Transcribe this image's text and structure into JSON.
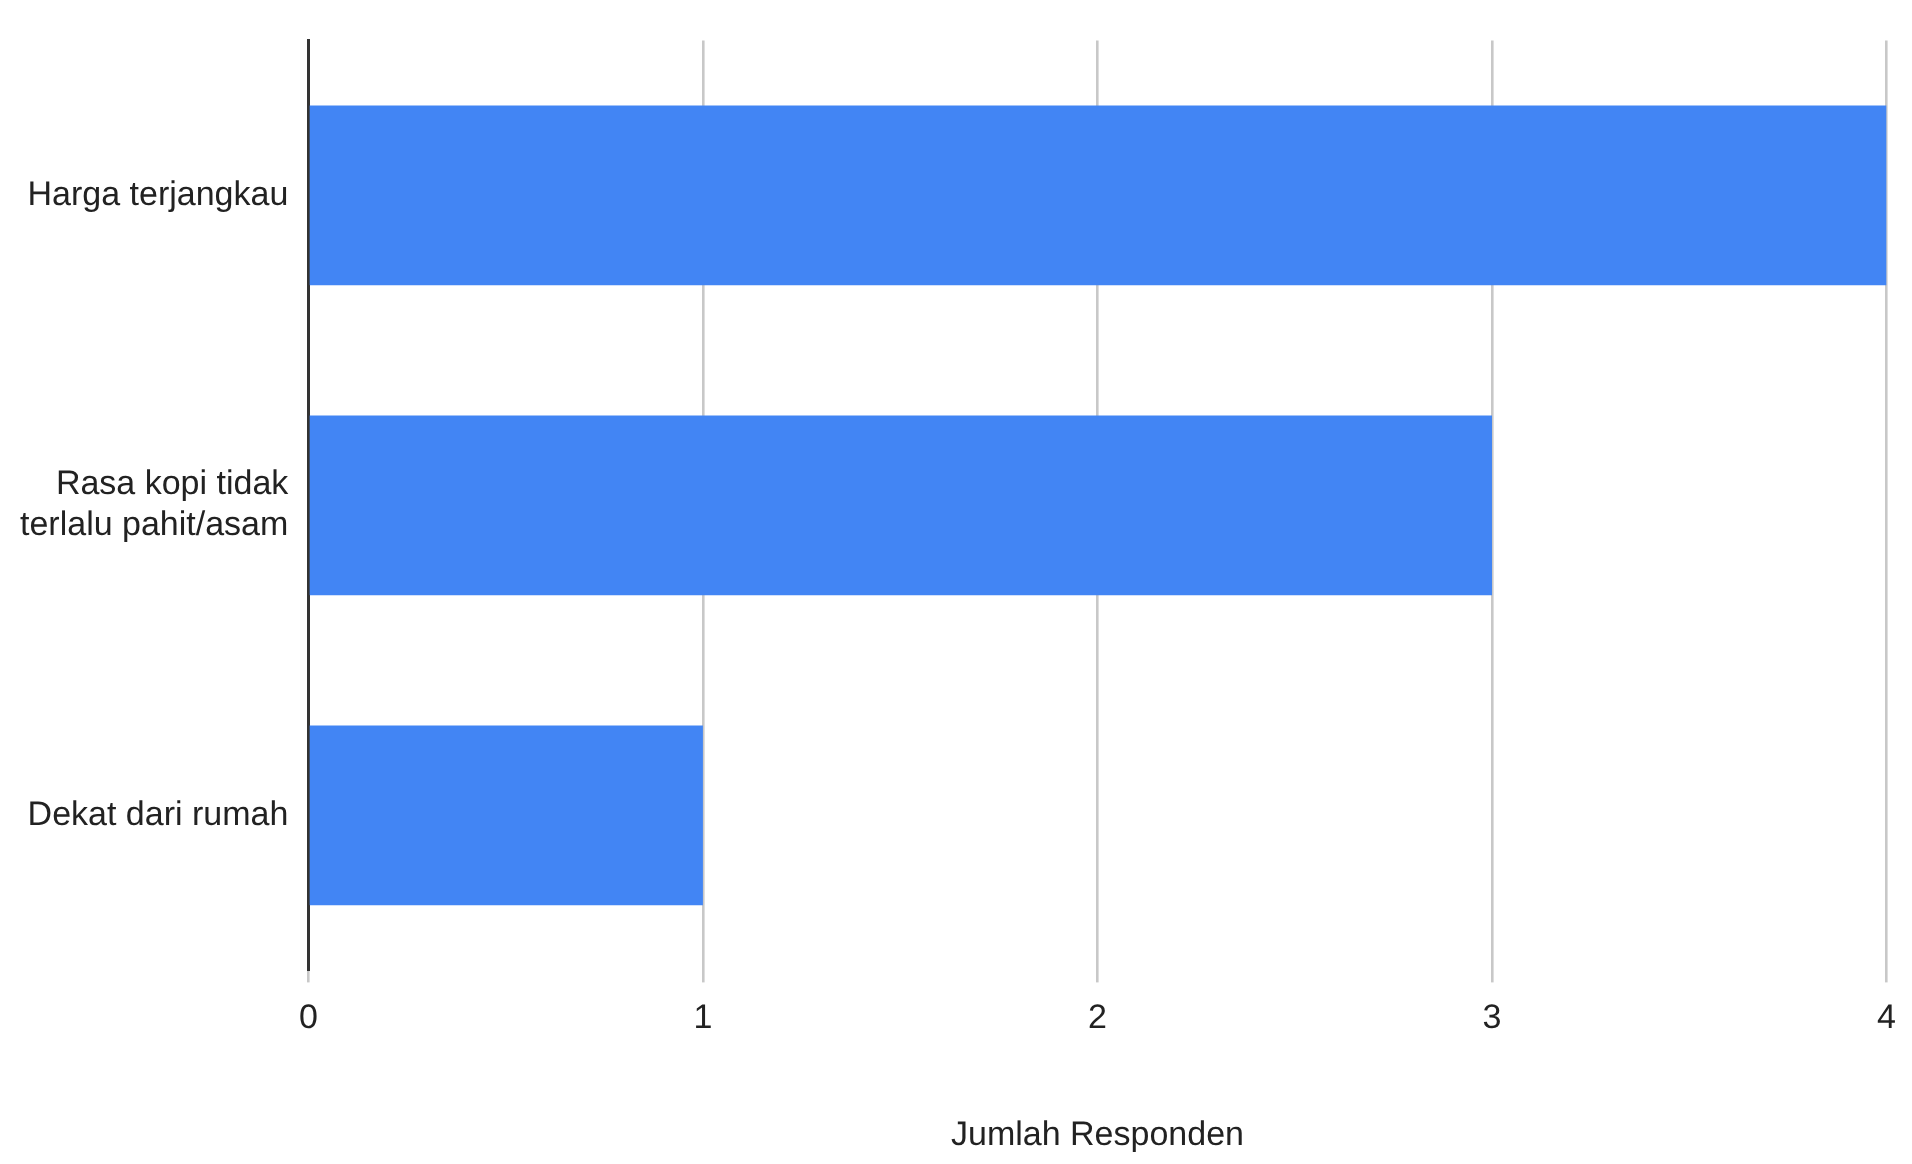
{
  "chart_data": {
    "type": "bar",
    "orientation": "horizontal",
    "categories": [
      "Harga terjangkau",
      "Rasa kopi tidak terlalu pahit/asam",
      "Dekat dari rumah"
    ],
    "values": [
      4,
      3,
      1
    ],
    "color": "#4285f4",
    "xlim": [
      0,
      4
    ],
    "xticks": [
      0,
      1,
      2,
      3,
      4
    ],
    "xlabel": "Jumlah Responden",
    "grid": "x",
    "legend": false
  }
}
